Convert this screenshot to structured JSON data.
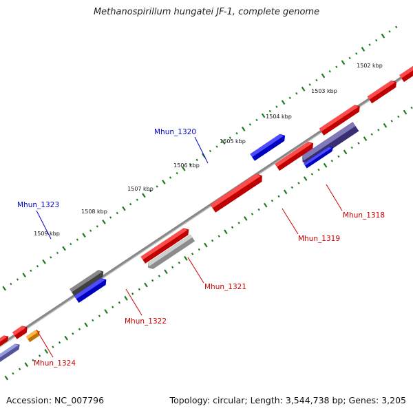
{
  "title": "Methanospirillum hungatei JF-1, complete genome",
  "footer": {
    "accession": "Accession: NC_007796",
    "summary": "Topology: circular; Length: 3,544,738 bp; Genes: 3,205"
  },
  "ticks": [
    {
      "label": "1502 kbp"
    },
    {
      "label": "1503 kbp"
    },
    {
      "label": "1504 kbp"
    },
    {
      "label": "1505 kbp"
    },
    {
      "label": "1506 kbp"
    },
    {
      "label": "1507 kbp"
    },
    {
      "label": "1508 kbp"
    },
    {
      "label": "1509 kbp"
    }
  ],
  "labels": [
    {
      "text": "Mhun_1320",
      "color": "#0000cc"
    },
    {
      "text": "Mhun_1323",
      "color": "#0000cc"
    },
    {
      "text": "Mhun_1318",
      "color": "#cc0000"
    },
    {
      "text": "Mhun_1319",
      "color": "#cc0000"
    },
    {
      "text": "Mhun_1321",
      "color": "#cc0000"
    },
    {
      "text": "Mhun_1322",
      "color": "#cc0000"
    },
    {
      "text": "Mhun_1324",
      "color": "#cc0000"
    }
  ],
  "feature_colors": {
    "forward_cds": "#ff0000",
    "reverse_cds": "#0000ff",
    "dark_gray": "#555555",
    "light_gray": "#bbbbbb",
    "orange": "#ff9900",
    "indigo": "#4a3f99",
    "periwinkle": "#6f6fd0",
    "tick_green": "#1f7a1f",
    "backbone": "#888888"
  }
}
